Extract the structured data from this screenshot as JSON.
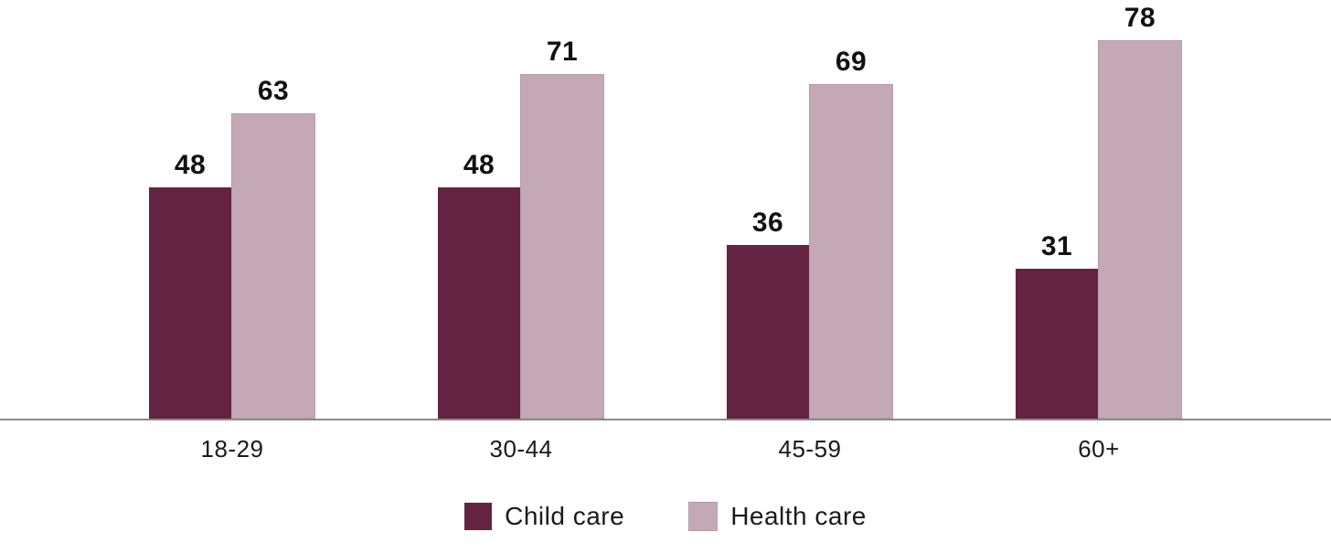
{
  "chart_data": {
    "type": "bar",
    "title": "",
    "xlabel": "",
    "ylabel": "",
    "categories": [
      "18-29",
      "30-44",
      "45-59",
      "60+"
    ],
    "series": [
      {
        "name": "Child care",
        "values": [
          48,
          48,
          36,
          31
        ],
        "color": "#652342"
      },
      {
        "name": "Health care",
        "values": [
          63,
          71,
          69,
          78
        ],
        "color": "#C5A8B5",
        "border_color": "#B69BA8"
      }
    ],
    "ylim": [
      0,
      86.8
    ],
    "grid": false,
    "data_labels": true,
    "legend_position": "bottom"
  },
  "colors": {
    "axis_line": "#8A8A8A",
    "label_text": "#111111",
    "background": "#FFFFFF"
  }
}
